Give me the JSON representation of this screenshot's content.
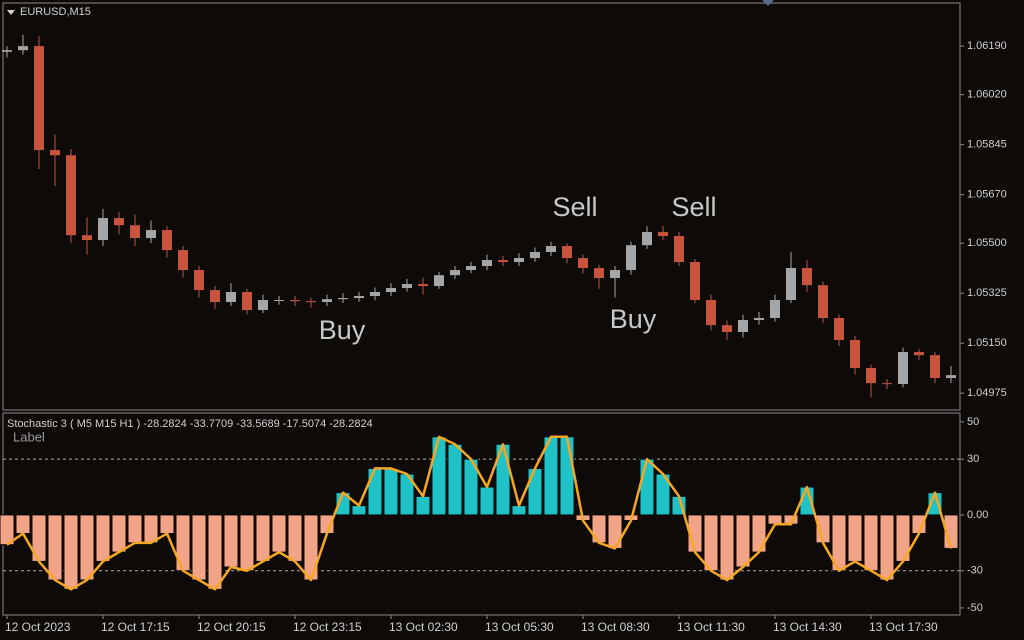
{
  "symbol": "EURUSD,M15",
  "annotations": [
    "Buy",
    "Sell",
    "Buy",
    "Sell"
  ],
  "chart_data": [
    {
      "type": "candlestick",
      "up_color": "#a6a6a6",
      "down_color": "#c8533f",
      "open": [
        1.0617,
        1.06176,
        1.0619,
        1.05826,
        1.05808,
        1.05528,
        1.05511,
        1.05588,
        1.05563,
        1.05518,
        1.05546,
        1.05476,
        1.05406,
        1.05336,
        1.05294,
        1.05329,
        1.05266,
        1.05301,
        1.05301,
        1.05297,
        1.05294,
        1.05304,
        1.05308,
        1.05315,
        1.05329,
        1.05343,
        1.05357,
        1.0535,
        1.05388,
        1.05406,
        1.0542,
        1.05441,
        1.05434,
        1.05448,
        1.05469,
        1.0549,
        1.05448,
        1.05413,
        1.05378,
        1.05406,
        1.05493,
        1.05539,
        1.05525,
        1.05434,
        1.05301,
        1.05213,
        1.05189,
        1.05231,
        1.05238,
        1.05301,
        1.05413,
        1.05353,
        1.05238,
        1.05161,
        1.05063,
        1.0501,
        1.05007,
        1.05119,
        1.05108,
        1.05028
      ],
      "high": [
        1.0619,
        1.0623,
        1.06225,
        1.0588,
        1.0583,
        1.0559,
        1.0562,
        1.0561,
        1.056,
        1.0558,
        1.0556,
        1.0549,
        1.0542,
        1.0535,
        1.0536,
        1.0534,
        1.0532,
        1.05315,
        1.05315,
        1.0531,
        1.0532,
        1.05325,
        1.0533,
        1.05345,
        1.0536,
        1.05375,
        1.0538,
        1.054,
        1.0542,
        1.05435,
        1.0546,
        1.05455,
        1.05465,
        1.05485,
        1.05505,
        1.055,
        1.0546,
        1.05425,
        1.0542,
        1.05505,
        1.0556,
        1.0556,
        1.0554,
        1.05445,
        1.0532,
        1.0523,
        1.0525,
        1.0526,
        1.0532,
        1.0547,
        1.0544,
        1.05365,
        1.0525,
        1.05175,
        1.05075,
        1.05025,
        1.05135,
        1.0513,
        1.0512,
        1.0507
      ],
      "low": [
        1.0615,
        1.0616,
        1.0576,
        1.057,
        1.055,
        1.0546,
        1.0549,
        1.0553,
        1.0549,
        1.055,
        1.0545,
        1.0538,
        1.0531,
        1.0527,
        1.0528,
        1.0525,
        1.05255,
        1.05285,
        1.0528,
        1.05275,
        1.0528,
        1.0529,
        1.05295,
        1.053,
        1.05315,
        1.0533,
        1.0532,
        1.0534,
        1.05375,
        1.05395,
        1.05405,
        1.0542,
        1.0542,
        1.05435,
        1.05455,
        1.0543,
        1.05395,
        1.0534,
        1.0531,
        1.0539,
        1.0548,
        1.0551,
        1.0542,
        1.0529,
        1.05195,
        1.0516,
        1.0517,
        1.05215,
        1.05225,
        1.0529,
        1.0533,
        1.0522,
        1.0514,
        1.0504,
        1.0496,
        1.0499,
        1.04995,
        1.0509,
        1.0501,
        1.0501
      ],
      "close": [
        1.06176,
        1.0619,
        1.05826,
        1.05808,
        1.05528,
        1.05511,
        1.05588,
        1.05563,
        1.05518,
        1.05546,
        1.05476,
        1.05406,
        1.05336,
        1.05294,
        1.05329,
        1.05266,
        1.05301,
        1.05301,
        1.05297,
        1.05294,
        1.05304,
        1.05308,
        1.05315,
        1.05329,
        1.05343,
        1.05357,
        1.0535,
        1.05388,
        1.05406,
        1.0542,
        1.05441,
        1.05434,
        1.05448,
        1.05469,
        1.0549,
        1.05448,
        1.05413,
        1.05378,
        1.05406,
        1.05493,
        1.05539,
        1.05525,
        1.05434,
        1.05301,
        1.05213,
        1.05189,
        1.05231,
        1.05238,
        1.05301,
        1.05413,
        1.05353,
        1.05238,
        1.05161,
        1.05063,
        1.0501,
        1.05007,
        1.05119,
        1.05108,
        1.05028,
        1.05038
      ],
      "ylim": [
        1.04916,
        1.06341
      ],
      "yticks": [
        {
          "value": 1.0619,
          "label": "1.06190"
        },
        {
          "value": 1.0602,
          "label": "1.06020"
        },
        1.05845,
        {
          "value": 1.0567,
          "label": "1.05670"
        },
        {
          "value": 1.055,
          "label": "1.05500"
        },
        1.05325,
        {
          "value": 1.0515,
          "label": "1.05150"
        },
        1.04975
      ]
    },
    {
      "type": "bar",
      "title": "Stochastic 3 ( M5  M15  H1 ) -28.2824 -33.7709 -33.5689 -17.5074 -28.2824",
      "label": "Label",
      "positive_color": "#1fc3c7",
      "negative_color": "#f2a488",
      "line_color": "#f5a623",
      "values": [
        -16,
        -10,
        -25,
        -35,
        -40,
        -35,
        -25,
        -20,
        -15,
        -15,
        -10,
        -30,
        -35,
        -40,
        -28,
        -30,
        -25,
        -20,
        -25,
        -35,
        -10,
        12,
        5,
        25,
        25,
        22,
        10,
        42,
        38,
        30,
        15,
        38,
        5,
        25,
        42,
        42,
        -3,
        -15,
        -18,
        -3,
        30,
        22,
        10,
        -20,
        -30,
        -35,
        -28,
        -20,
        -5,
        -5,
        15,
        -15,
        -30,
        -25,
        -30,
        -35,
        -25,
        -10,
        12,
        -18
      ],
      "ylim": [
        -53.8,
        54.8
      ],
      "yticks": [
        50,
        30,
        {
          "value": 0,
          "label": "0.00"
        },
        -30,
        -50
      ],
      "levels": [
        30,
        -30
      ],
      "xticks": [
        {
          "value": 0,
          "label": "12 Oct 2023"
        },
        {
          "value": 6,
          "label": "12 Oct 17:15"
        },
        {
          "value": 12,
          "label": "12 Oct 20:15"
        },
        {
          "value": 18,
          "label": "12 Oct 23:15"
        },
        {
          "value": 24,
          "label": "13 Oct 02:30"
        },
        {
          "value": 30,
          "label": "13 Oct 05:30"
        },
        {
          "value": 36,
          "label": "13 Oct 08:30"
        },
        {
          "value": 42,
          "label": "13 Oct 11:30"
        },
        {
          "value": 48,
          "label": "13 Oct 14:30"
        },
        {
          "value": 54,
          "label": "13 Oct 17:30"
        }
      ]
    }
  ]
}
